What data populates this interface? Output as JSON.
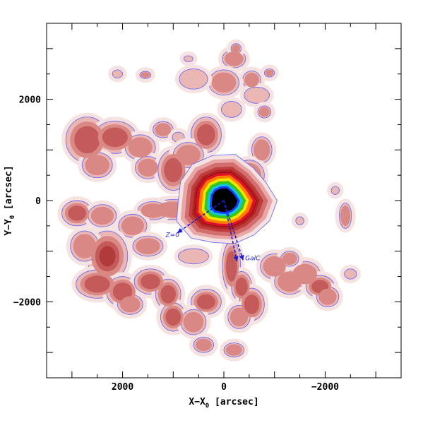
{
  "chart_data": {
    "type": "heatmap",
    "title": "",
    "xlabel": "X−X",
    "xlabel_sub": "0",
    "xlabel_unit": " [arcsec]",
    "ylabel": "Y−Y",
    "ylabel_sub": "0",
    "ylabel_unit": " [arcsec]",
    "xlim": [
      3500,
      -3500
    ],
    "ylim": [
      -3500,
      3500
    ],
    "x_ticks": [
      {
        "value": 2000,
        "label": "2000"
      },
      {
        "value": 0,
        "label": "0"
      },
      {
        "value": -2000,
        "label": "−2000"
      }
    ],
    "y_ticks": [
      {
        "value": 2000,
        "label": "2000"
      },
      {
        "value": 0,
        "label": "0"
      },
      {
        "value": -2000,
        "label": "−2000"
      }
    ],
    "grid": false,
    "legend": "none",
    "colors": {
      "faint": "#f6e2e0",
      "low": "#eab7b5",
      "mid": "#d98886",
      "mid_high": "#c45a5a",
      "high": "#b13a3a",
      "outline": "#6e6ef0",
      "core_red": "#e0102a",
      "core_orange": "#ff7e00",
      "core_yellow": "#f2e500",
      "core_green": "#37c51f",
      "core_cyan": "#12c8d8",
      "core_blue": "#1a3cff",
      "core_black": "#000000",
      "annotation": "#1a1ad8"
    },
    "annotations": [
      {
        "text": "Z=0",
        "x": 1150,
        "y": -720
      },
      {
        "text": "GalC",
        "x": -420,
        "y": -1180
      }
    ],
    "direction_arrows": [
      {
        "name": "Z=0",
        "from": [
          0,
          0
        ],
        "to": [
          920,
          -640
        ]
      },
      {
        "name": "GalC-1",
        "from": [
          0,
          0
        ],
        "to": [
          -260,
          -1200
        ]
      },
      {
        "name": "GalC-2",
        "from": [
          0,
          0
        ],
        "to": [
          -380,
          -1180
        ]
      }
    ],
    "core": {
      "x": 0,
      "y": 0
    },
    "blobs": [
      {
        "x": -200,
        "y": 2800,
        "rx": 230,
        "ry": 180,
        "level": 2
      },
      {
        "x": -240,
        "y": 3000,
        "rx": 100,
        "ry": 100,
        "level": 2
      },
      {
        "x": 700,
        "y": 2800,
        "rx": 90,
        "ry": 60,
        "level": 1
      },
      {
        "x": 1550,
        "y": 2480,
        "rx": 110,
        "ry": 70,
        "level": 2
      },
      {
        "x": -550,
        "y": 2380,
        "rx": 180,
        "ry": 180,
        "level": 2
      },
      {
        "x": -900,
        "y": 2520,
        "rx": 100,
        "ry": 80,
        "level": 2
      },
      {
        "x": 0,
        "y": 2330,
        "rx": 300,
        "ry": 250,
        "level": 2
      },
      {
        "x": 600,
        "y": 2400,
        "rx": 280,
        "ry": 200,
        "level": 1
      },
      {
        "x": -650,
        "y": 2080,
        "rx": 250,
        "ry": 160,
        "level": 1
      },
      {
        "x": -800,
        "y": 1750,
        "rx": 130,
        "ry": 120,
        "level": 2
      },
      {
        "x": -150,
        "y": 1800,
        "rx": 200,
        "ry": 160,
        "level": 1
      },
      {
        "x": 2700,
        "y": 1200,
        "rx": 420,
        "ry": 450,
        "level": 3
      },
      {
        "x": 2150,
        "y": 1250,
        "rx": 420,
        "ry": 320,
        "level": 3
      },
      {
        "x": 1650,
        "y": 1050,
        "rx": 300,
        "ry": 250,
        "level": 2
      },
      {
        "x": 1500,
        "y": 650,
        "rx": 250,
        "ry": 220,
        "level": 2
      },
      {
        "x": 2500,
        "y": 700,
        "rx": 300,
        "ry": 250,
        "level": 2
      },
      {
        "x": 1200,
        "y": 1400,
        "rx": 200,
        "ry": 160,
        "level": 2
      },
      {
        "x": 900,
        "y": 1250,
        "rx": 120,
        "ry": 100,
        "level": 1
      },
      {
        "x": 350,
        "y": 1300,
        "rx": 300,
        "ry": 350,
        "level": 3
      },
      {
        "x": 1000,
        "y": 600,
        "rx": 300,
        "ry": 400,
        "level": 3
      },
      {
        "x": 700,
        "y": 900,
        "rx": 300,
        "ry": 250,
        "level": 2
      },
      {
        "x": -750,
        "y": 1000,
        "rx": 200,
        "ry": 260,
        "level": 2
      },
      {
        "x": -500,
        "y": 500,
        "rx": 300,
        "ry": 300,
        "level": 2
      },
      {
        "x": -650,
        "y": 0,
        "rx": 260,
        "ry": 220,
        "level": 2
      },
      {
        "x": 1000,
        "y": -180,
        "rx": 450,
        "ry": 200,
        "level": 2
      },
      {
        "x": 1400,
        "y": -200,
        "rx": 300,
        "ry": 180,
        "level": 2
      },
      {
        "x": 2900,
        "y": -250,
        "rx": 300,
        "ry": 250,
        "level": 3
      },
      {
        "x": 2400,
        "y": -300,
        "rx": 280,
        "ry": 220,
        "level": 2
      },
      {
        "x": 1800,
        "y": -500,
        "rx": 280,
        "ry": 230,
        "level": 2
      },
      {
        "x": 2300,
        "y": -1100,
        "rx": 400,
        "ry": 500,
        "level": 4
      },
      {
        "x": 2750,
        "y": -900,
        "rx": 280,
        "ry": 300,
        "level": 2
      },
      {
        "x": 2500,
        "y": -1650,
        "rx": 420,
        "ry": 280,
        "level": 3
      },
      {
        "x": 2000,
        "y": -1800,
        "rx": 320,
        "ry": 300,
        "level": 3
      },
      {
        "x": 1450,
        "y": -1600,
        "rx": 320,
        "ry": 250,
        "level": 3
      },
      {
        "x": 1100,
        "y": -1850,
        "rx": 250,
        "ry": 300,
        "level": 3
      },
      {
        "x": 1000,
        "y": -2300,
        "rx": 250,
        "ry": 280,
        "level": 3
      },
      {
        "x": 1850,
        "y": -2050,
        "rx": 250,
        "ry": 200,
        "level": 2
      },
      {
        "x": 1500,
        "y": -900,
        "rx": 300,
        "ry": 200,
        "level": 2
      },
      {
        "x": 600,
        "y": -1100,
        "rx": 300,
        "ry": 150,
        "level": 1
      },
      {
        "x": 350,
        "y": -2000,
        "rx": 300,
        "ry": 250,
        "level": 3
      },
      {
        "x": 600,
        "y": -2400,
        "rx": 250,
        "ry": 250,
        "level": 2
      },
      {
        "x": -150,
        "y": -1300,
        "rx": 180,
        "ry": 500,
        "level": 3
      },
      {
        "x": -350,
        "y": -1700,
        "rx": 200,
        "ry": 300,
        "level": 3
      },
      {
        "x": -550,
        "y": -2050,
        "rx": 250,
        "ry": 320,
        "level": 3
      },
      {
        "x": -300,
        "y": -2300,
        "rx": 220,
        "ry": 230,
        "level": 2
      },
      {
        "x": -1000,
        "y": -1300,
        "rx": 280,
        "ry": 250,
        "level": 2
      },
      {
        "x": -1300,
        "y": -1600,
        "rx": 300,
        "ry": 250,
        "level": 2
      },
      {
        "x": -1600,
        "y": -1450,
        "rx": 300,
        "ry": 250,
        "level": 2
      },
      {
        "x": -1900,
        "y": -1700,
        "rx": 280,
        "ry": 220,
        "level": 3
      },
      {
        "x": -2050,
        "y": -1900,
        "rx": 220,
        "ry": 200,
        "level": 2
      },
      {
        "x": -1300,
        "y": -1150,
        "rx": 180,
        "ry": 150,
        "level": 2
      },
      {
        "x": -2500,
        "y": -1450,
        "rx": 120,
        "ry": 100,
        "level": 1
      },
      {
        "x": -2400,
        "y": -300,
        "rx": 120,
        "ry": 250,
        "level": 2
      },
      {
        "x": -2200,
        "y": 200,
        "rx": 80,
        "ry": 80,
        "level": 1
      },
      {
        "x": -1500,
        "y": -400,
        "rx": 80,
        "ry": 80,
        "level": 1
      },
      {
        "x": 400,
        "y": -2850,
        "rx": 200,
        "ry": 150,
        "level": 2
      },
      {
        "x": -200,
        "y": -2950,
        "rx": 200,
        "ry": 140,
        "level": 2
      },
      {
        "x": 2100,
        "y": 2500,
        "rx": 100,
        "ry": 80,
        "level": 1
      }
    ]
  }
}
